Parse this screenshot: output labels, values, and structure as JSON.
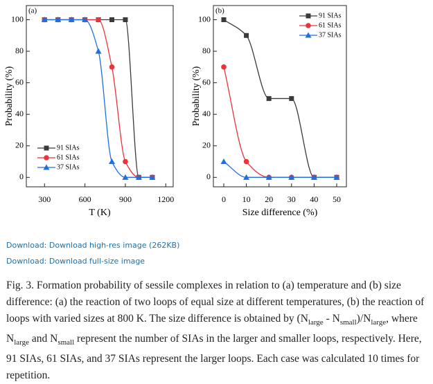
{
  "chart_data": [
    {
      "type": "line",
      "panel": "(a)",
      "xlabel": "T (K)",
      "ylabel": "Probability (%)",
      "x": [
        300,
        400,
        500,
        600,
        700,
        800,
        900,
        1000,
        1100
      ],
      "xlim": [
        165,
        1255
      ],
      "xticks": [
        300,
        600,
        900,
        1200
      ],
      "ylim": [
        -6,
        109
      ],
      "yticks": [
        0,
        20,
        40,
        60,
        80,
        100
      ],
      "legend": "lower left",
      "series": [
        {
          "name": "91 SIAs",
          "color": "#3a3a3a",
          "marker": "square",
          "values": [
            100,
            100,
            100,
            100,
            100,
            100,
            100,
            0,
            0
          ]
        },
        {
          "name": "61 SIAs",
          "color": "#e8343a",
          "marker": "circle",
          "values": [
            100,
            100,
            100,
            100,
            100,
            70,
            10,
            0,
            0
          ]
        },
        {
          "name": "37 SIAs",
          "color": "#1f6fe0",
          "marker": "triangle",
          "values": [
            100,
            100,
            100,
            100,
            80,
            10,
            0,
            0,
            0
          ]
        }
      ]
    },
    {
      "type": "line",
      "panel": "(b)",
      "xlabel": "Size difference (%)",
      "ylabel": "Probability (%)",
      "x": [
        0,
        10,
        20,
        30,
        40,
        50
      ],
      "xlim": [
        -4.6,
        54.3
      ],
      "xticks": [
        0,
        10,
        20,
        30,
        40,
        50
      ],
      "ylim": [
        -6,
        109
      ],
      "yticks": [
        0,
        20,
        40,
        60,
        80,
        100
      ],
      "legend": "upper right",
      "series": [
        {
          "name": "91 SIAs",
          "color": "#3a3a3a",
          "marker": "square",
          "values": [
            100,
            90,
            50,
            50,
            0,
            0
          ]
        },
        {
          "name": "61 SIAs",
          "color": "#e8343a",
          "marker": "circle",
          "values": [
            70,
            10,
            0,
            0,
            0,
            0
          ]
        },
        {
          "name": "37 SIAs",
          "color": "#1f6fe0",
          "marker": "triangle",
          "values": [
            10,
            0,
            0,
            0,
            0,
            0
          ]
        }
      ]
    }
  ],
  "links": [
    "Download: Download high-res image (262KB)",
    "Download: Download full-size image"
  ],
  "caption": [
    "Fig. 3. Formation probability of sessile complexes in relation to (a) temperature and (b) size difference: (a) the reaction of two loops of equal size at different temperatures, (b) the reaction of loops with varied sizes at 800 K. The size difference is obtained by (N",
    "large",
    " - N",
    "small",
    ")/N",
    "large",
    ", where N",
    "large",
    " and N",
    "small",
    " represent the number of SIAs in the larger and smaller loops, respectively. Here, 91 SIAs, 61 SIAs, and 37 SIAs represent the larger loops. Each case was calculated 10 times for repetition."
  ]
}
